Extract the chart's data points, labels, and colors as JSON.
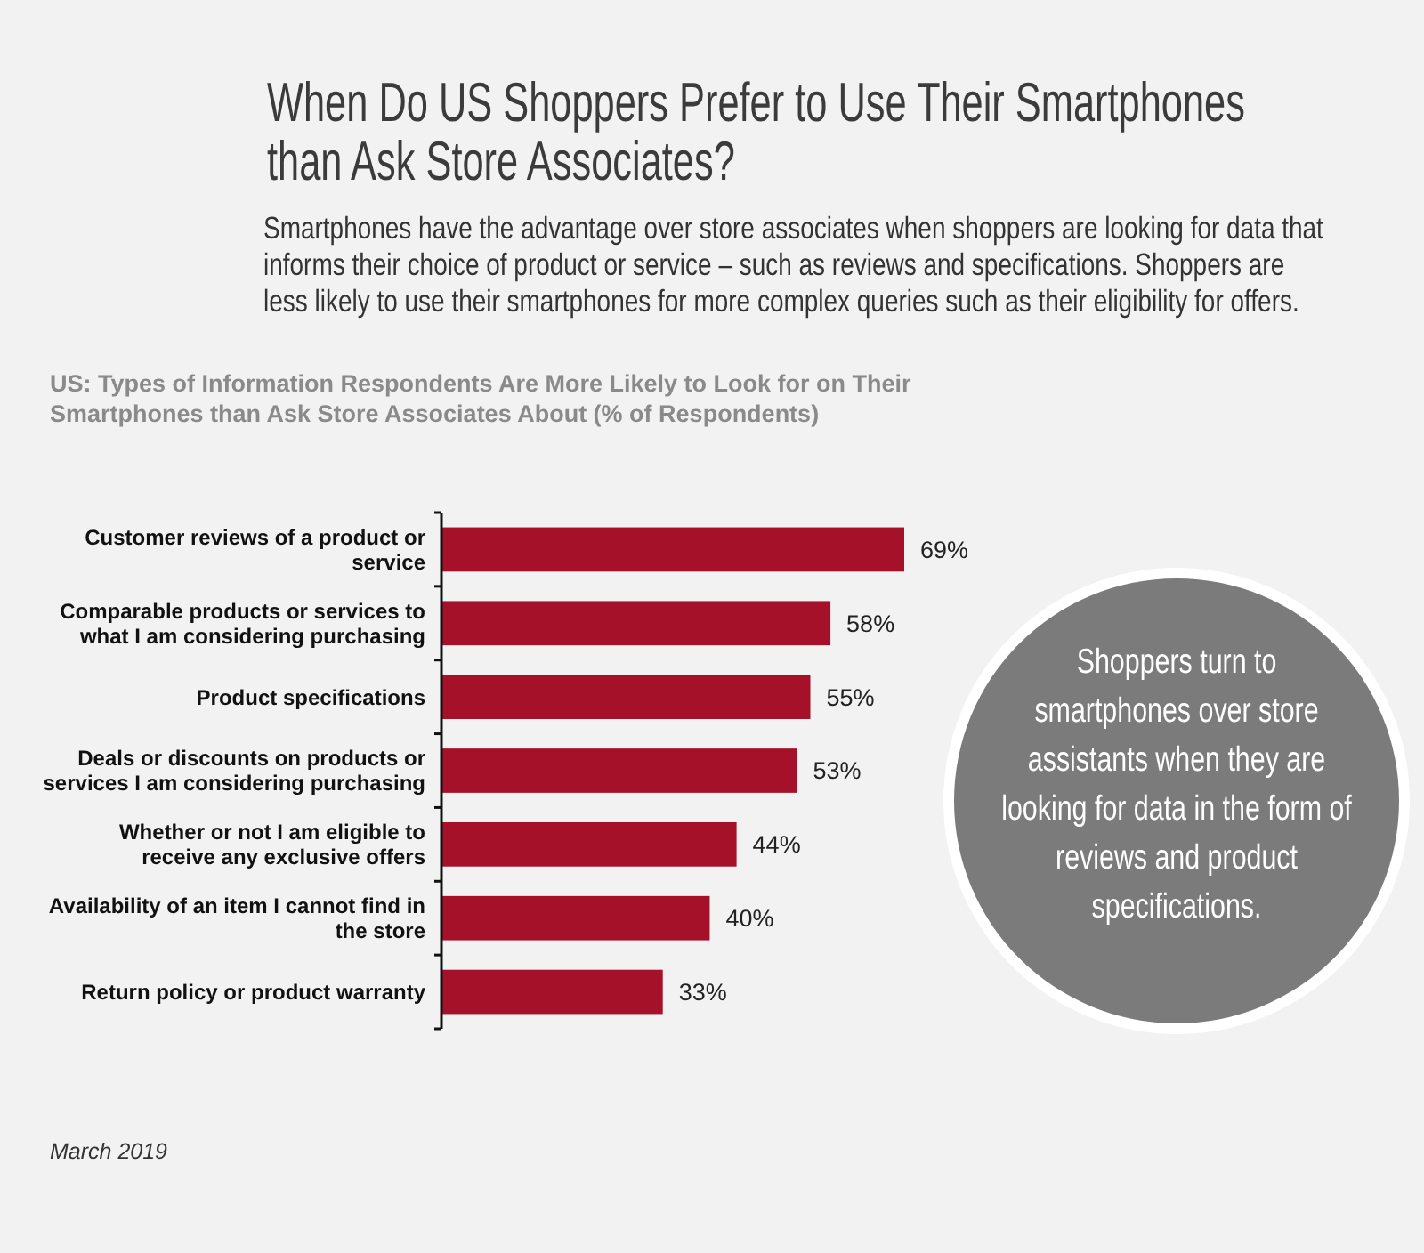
{
  "chart_data": {
    "type": "bar",
    "orientation": "horizontal",
    "title": "When Do US Shoppers Prefer to Use Their Smartphones than Ask Store Associates?",
    "subtitle": "Smartphones have the advantage over store associates when shoppers are looking for data that informs their choice of product or service – such as reviews and specifications. Shoppers are less likely to use their smartphones for more complex queries such as their eligibility for offers.",
    "categories": [
      "Customer reviews of a product or service",
      "Comparable products or services to what I am considering purchasing",
      "Product specifications",
      "Deals or discounts on products or services I am considering purchasing",
      "Whether or not I am eligible to receive any exclusive offers",
      "Availability of an item I cannot find in the store",
      "Return policy or product warranty"
    ],
    "values": [
      69,
      58,
      55,
      53,
      44,
      40,
      33
    ],
    "value_labels": [
      "69%",
      "58%",
      "55%",
      "53%",
      "44%",
      "40%",
      "33%"
    ],
    "color": "#a6112a",
    "annotations": [
      "US: Types of Information Respondents Are More Likely to Look for on Their Smartphones than Ask Store Associates About (% of Respondents)",
      "Shoppers turn to smartphones over store assistants when they are looking for data in the form of reviews and product specifications.",
      "March 2019"
    ]
  }
}
